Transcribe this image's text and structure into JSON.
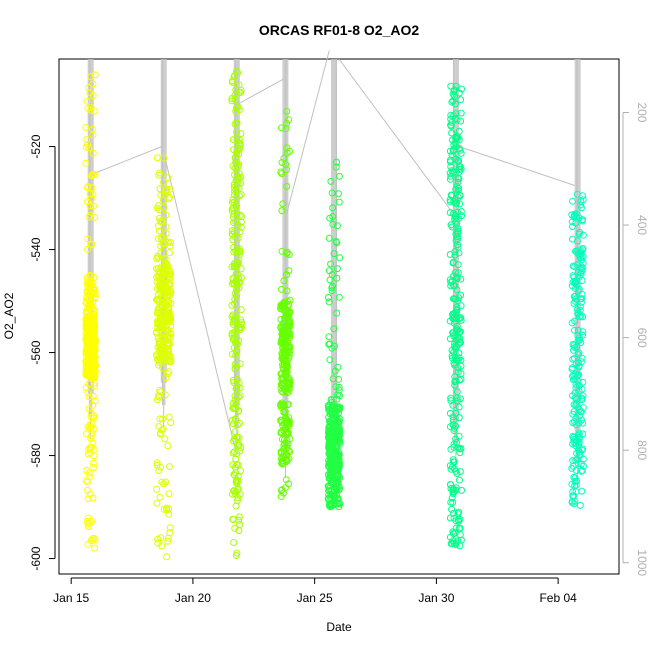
{
  "chart_data": {
    "type": "scatter",
    "title": "ORCAS RF01-8 O2_AO2",
    "xlabel": "Date",
    "ylabel": "O2_AO2",
    "x_axis": {
      "range_days_from_jan15": [
        -0.5,
        22.5
      ],
      "ticks": [
        {
          "label": "Jan 15",
          "day": 0
        },
        {
          "label": "Jan 20",
          "day": 5
        },
        {
          "label": "Jan 25",
          "day": 10
        },
        {
          "label": "Jan 30",
          "day": 15
        },
        {
          "label": "Feb 04",
          "day": 20
        }
      ]
    },
    "y_axis": {
      "range": [
        -603,
        -503
      ],
      "ticks": [
        -600,
        -580,
        -560,
        -540,
        -520
      ]
    },
    "y2_axis": {
      "range": [
        1020,
        105
      ],
      "ticks": [
        200,
        400,
        600,
        800,
        1000
      ],
      "color": "#b0b0b0"
    },
    "grid": false,
    "flights": [
      {
        "day": 0.8,
        "color": "#ffff00",
        "spread": 0.1,
        "dense": [
          [
            -553,
            -565,
            300
          ],
          [
            -545,
            -556,
            80
          ],
          [
            -506,
            -540,
            40
          ]
        ],
        "sparse": [
          [
            -560,
            -599,
            55
          ],
          [
            -570,
            -580,
            10
          ]
        ]
      },
      {
        "day": 3.8,
        "color": "#ddff00",
        "spread": 0.15,
        "dense": [
          [
            -543,
            -562,
            200
          ],
          [
            -528,
            -545,
            40
          ]
        ],
        "sparse": [
          [
            -520,
            -600,
            60
          ],
          [
            -580,
            -599,
            15
          ]
        ]
      },
      {
        "day": 6.8,
        "color": "#a8ff00",
        "spread": 0.1,
        "dense": [
          [
            -505,
            -590,
            180
          ],
          [
            -520,
            -560,
            40
          ]
        ],
        "sparse": [
          [
            -575,
            -600,
            25
          ]
        ]
      },
      {
        "day": 8.8,
        "color": "#66ff00",
        "spread": 0.1,
        "dense": [
          [
            -550,
            -568,
            150
          ],
          [
            -570,
            -582,
            60
          ]
        ],
        "sparse": [
          [
            -513,
            -588,
            60
          ]
        ]
      },
      {
        "day": 10.8,
        "color": "#22ff44",
        "spread": 0.12,
        "dense": [
          [
            -570,
            -590,
            260
          ],
          [
            -575,
            -583,
            80
          ]
        ],
        "sparse": [
          [
            -522,
            -570,
            50
          ]
        ]
      },
      {
        "day": 15.8,
        "color": "#00ff88",
        "spread": 0.12,
        "dense": [
          [
            -508,
            -570,
            200
          ]
        ],
        "sparse": [
          [
            -570,
            -598,
            55
          ],
          [
            -585,
            -598,
            20
          ]
        ]
      },
      {
        "day": 20.8,
        "color": "#00ffbb",
        "spread": 0.12,
        "dense": [
          [
            -528,
            -590,
            180
          ]
        ],
        "sparse": [
          [
            -540,
            -586,
            20
          ]
        ]
      }
    ],
    "track": {
      "color": "#c0c0c0",
      "verticals": [
        {
          "day": 0.8,
          "y2": [
            105,
            780
          ]
        },
        {
          "day": 3.8,
          "y2": [
            105,
            760
          ]
        },
        {
          "day": 6.8,
          "y2": [
            105,
            800
          ]
        },
        {
          "day": 8.8,
          "y2": [
            105,
            850
          ]
        },
        {
          "day": 10.8,
          "y2": [
            105,
            820
          ]
        },
        {
          "day": 15.8,
          "y2": [
            105,
            830
          ]
        },
        {
          "day": 20.8,
          "y2": [
            105,
            860
          ]
        }
      ],
      "transits": [
        [
          0.85,
          310,
          3.75,
          260
        ],
        [
          3.85,
          280,
          6.75,
          800
        ],
        [
          6.85,
          185,
          8.75,
          140
        ],
        [
          8.85,
          380,
          10.6,
          90
        ],
        [
          11.0,
          105,
          15.7,
          380
        ],
        [
          15.9,
          260,
          20.7,
          330
        ]
      ]
    }
  }
}
